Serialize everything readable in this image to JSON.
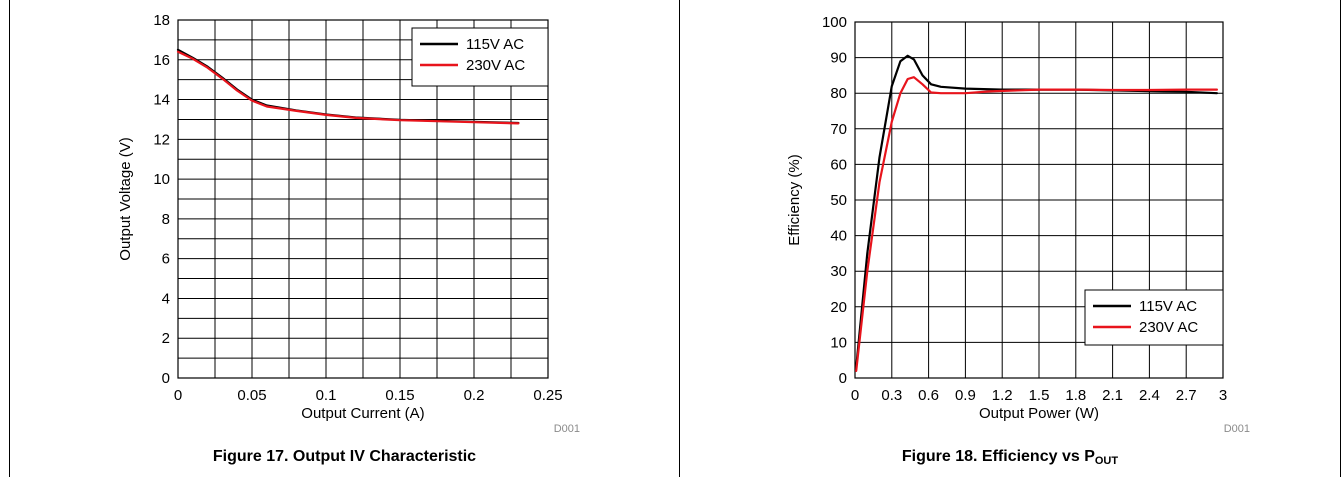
{
  "figures": [
    {
      "caption": "Figure 17. Output IV Characteristic",
      "caption_sub": "",
      "code": "D001"
    },
    {
      "caption": "Figure 18. Efficiency vs P",
      "caption_sub": "OUT",
      "code": "D001"
    }
  ],
  "chart_data": [
    {
      "type": "line",
      "title": "",
      "xlabel": "Output Current (A)",
      "ylabel": "Output Voltage (V)",
      "xlim": [
        0,
        0.25
      ],
      "ylim": [
        0,
        18
      ],
      "xticks": [
        0,
        0.05,
        0.1,
        0.15,
        0.2,
        0.25
      ],
      "xtick_labels": [
        "0",
        "0.05",
        "0.1",
        "0.15",
        "0.2",
        "0.25"
      ],
      "yticks": [
        0,
        2,
        4,
        6,
        8,
        10,
        12,
        14,
        16,
        18
      ],
      "ytick_labels": [
        "0",
        "2",
        "4",
        "6",
        "8",
        "10",
        "12",
        "14",
        "16",
        "18"
      ],
      "x_minor_step": 0.025,
      "y_minor_step": 1,
      "grid": true,
      "legend_position": "top-right",
      "series": [
        {
          "name": "115V AC",
          "color": "#000000",
          "points": [
            [
              0,
              16.5
            ],
            [
              0.01,
              16.1
            ],
            [
              0.02,
              15.65
            ],
            [
              0.03,
              15.1
            ],
            [
              0.04,
              14.5
            ],
            [
              0.05,
              14.0
            ],
            [
              0.06,
              13.7
            ],
            [
              0.08,
              13.45
            ],
            [
              0.1,
              13.25
            ],
            [
              0.12,
              13.1
            ],
            [
              0.15,
              12.98
            ],
            [
              0.2,
              12.88
            ],
            [
              0.23,
              12.82
            ]
          ]
        },
        {
          "name": "230V AC",
          "color": "#e8141c",
          "points": [
            [
              0,
              16.4
            ],
            [
              0.01,
              16.05
            ],
            [
              0.02,
              15.6
            ],
            [
              0.03,
              15.05
            ],
            [
              0.04,
              14.45
            ],
            [
              0.05,
              13.95
            ],
            [
              0.06,
              13.65
            ],
            [
              0.08,
              13.43
            ],
            [
              0.1,
              13.23
            ],
            [
              0.12,
              13.08
            ],
            [
              0.15,
              12.96
            ],
            [
              0.2,
              12.86
            ],
            [
              0.23,
              12.8
            ]
          ]
        }
      ]
    },
    {
      "type": "line",
      "title": "",
      "xlabel": "Output Power (W)",
      "ylabel": "Efficiency (%)",
      "xlim": [
        0,
        3
      ],
      "ylim": [
        0,
        100
      ],
      "xticks": [
        0,
        0.3,
        0.6,
        0.9,
        1.2,
        1.5,
        1.8,
        2.1,
        2.4,
        2.7,
        3
      ],
      "xtick_labels": [
        "0",
        "0.3",
        "0.6",
        "0.9",
        "1.2",
        "1.5",
        "1.8",
        "2.1",
        "2.4",
        "2.7",
        "3"
      ],
      "yticks": [
        0,
        10,
        20,
        30,
        40,
        50,
        60,
        70,
        80,
        90,
        100
      ],
      "ytick_labels": [
        "0",
        "10",
        "20",
        "30",
        "40",
        "50",
        "60",
        "70",
        "80",
        "90",
        "100"
      ],
      "x_minor_step": 0.3,
      "y_minor_step": 10,
      "grid": true,
      "legend_position": "bottom-right",
      "series": [
        {
          "name": "115V AC",
          "color": "#000000",
          "points": [
            [
              0.01,
              3
            ],
            [
              0.1,
              35
            ],
            [
              0.2,
              62
            ],
            [
              0.3,
              82
            ],
            [
              0.37,
              89
            ],
            [
              0.43,
              90.5
            ],
            [
              0.48,
              89.5
            ],
            [
              0.55,
              85
            ],
            [
              0.62,
              82.5
            ],
            [
              0.7,
              81.8
            ],
            [
              0.9,
              81.3
            ],
            [
              1.2,
              81
            ],
            [
              1.5,
              81
            ],
            [
              1.8,
              81
            ],
            [
              2.1,
              80.8
            ],
            [
              2.4,
              80.6
            ],
            [
              2.7,
              80.4
            ],
            [
              2.95,
              80
            ]
          ]
        },
        {
          "name": "230V AC",
          "color": "#e8141c",
          "points": [
            [
              0.01,
              2
            ],
            [
              0.1,
              30
            ],
            [
              0.2,
              55
            ],
            [
              0.3,
              72
            ],
            [
              0.37,
              80
            ],
            [
              0.43,
              84
            ],
            [
              0.48,
              84.5
            ],
            [
              0.55,
              82.5
            ],
            [
              0.62,
              80.2
            ],
            [
              0.7,
              80
            ],
            [
              0.9,
              80
            ],
            [
              1.1,
              80.5
            ],
            [
              1.5,
              81
            ],
            [
              1.8,
              81
            ],
            [
              2.1,
              80.9
            ],
            [
              2.4,
              80.9
            ],
            [
              2.7,
              81
            ],
            [
              2.95,
              81
            ]
          ]
        }
      ]
    }
  ]
}
